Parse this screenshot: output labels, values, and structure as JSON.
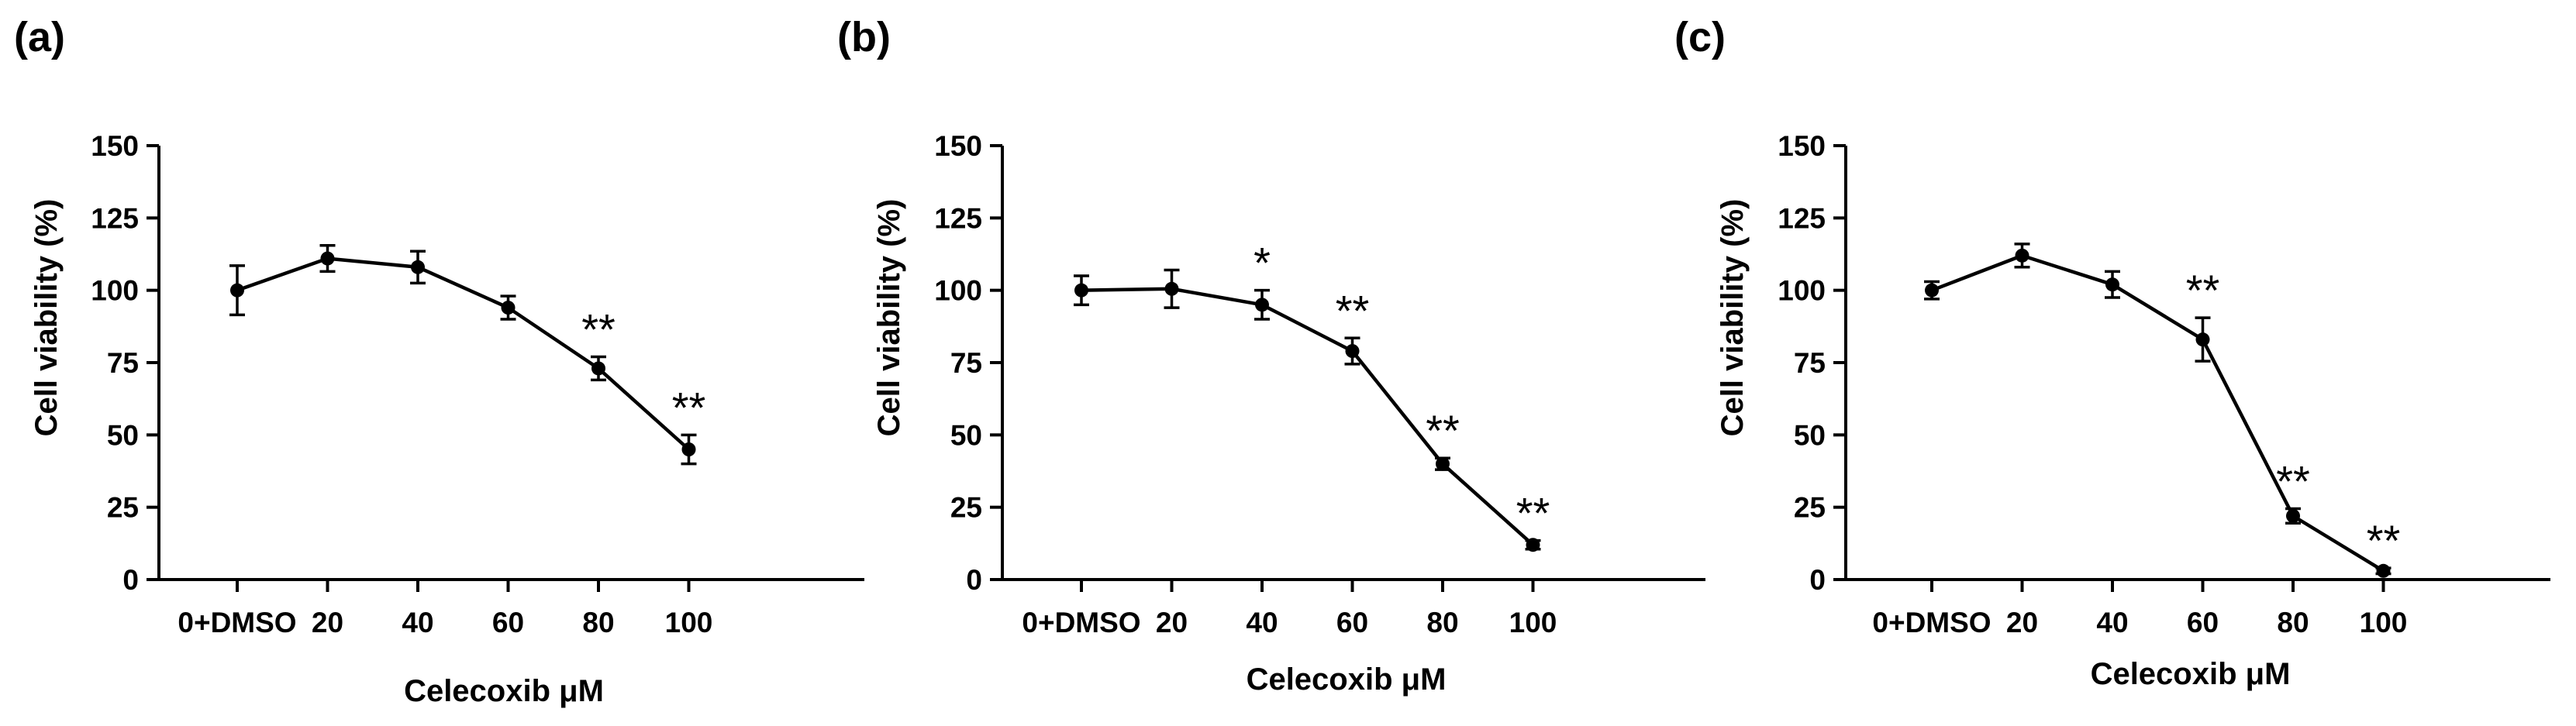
{
  "figure": {
    "panels": [
      "(a)",
      "(b)",
      "(c)"
    ]
  },
  "chart_data": [
    {
      "type": "line",
      "panel": "(a)",
      "xlabel": "Celecoxib μM",
      "ylabel": "Cell viability (%)",
      "categories": [
        "0+DMSO",
        "20",
        "40",
        "60",
        "80",
        "100"
      ],
      "values": [
        100,
        111,
        108,
        94,
        73,
        45
      ],
      "errors": [
        8.5,
        4.5,
        5.5,
        4,
        4,
        5
      ],
      "significance": [
        "",
        "",
        "",
        "",
        "**",
        "**"
      ],
      "ylim": [
        0,
        150
      ],
      "yticks": [
        0,
        25,
        50,
        75,
        100,
        125,
        150
      ],
      "grid": false
    },
    {
      "type": "line",
      "panel": "(b)",
      "xlabel": "Celecoxib μM",
      "ylabel": "Cell viability (%)",
      "categories": [
        "0+DMSO",
        "20",
        "40",
        "60",
        "80",
        "100"
      ],
      "values": [
        100,
        100.5,
        95,
        79,
        40,
        12
      ],
      "errors": [
        5,
        6.5,
        5,
        4.5,
        2,
        1.5
      ],
      "significance": [
        "",
        "",
        "*",
        "**",
        "**",
        "**"
      ],
      "ylim": [
        0,
        150
      ],
      "yticks": [
        0,
        25,
        50,
        75,
        100,
        125,
        150
      ],
      "grid": false
    },
    {
      "type": "line",
      "panel": "(c)",
      "xlabel": "Celecoxib μM",
      "ylabel": "Cell viability (%)",
      "categories": [
        "0+DMSO",
        "20",
        "40",
        "60",
        "80",
        "100"
      ],
      "values": [
        100,
        112,
        102,
        83,
        22,
        3
      ],
      "errors": [
        3,
        4,
        4.5,
        7.5,
        2.5,
        1
      ],
      "significance": [
        "",
        "",
        "",
        "**",
        "**",
        "**"
      ],
      "ylim": [
        0,
        150
      ],
      "yticks": [
        0,
        25,
        50,
        75,
        100,
        125,
        150
      ],
      "grid": false
    }
  ]
}
